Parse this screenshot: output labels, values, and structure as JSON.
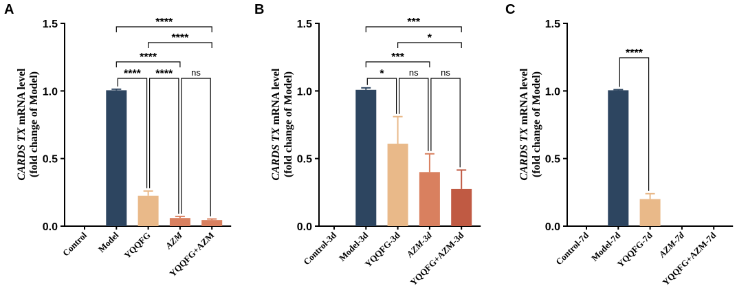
{
  "chart_data": [
    {
      "panel": "A",
      "type": "bar",
      "categories": [
        "Control",
        "Model",
        "YQQFG",
        "AZM",
        "YQQFG+AZM"
      ],
      "category_italic": [
        false,
        false,
        false,
        true,
        false
      ],
      "values": [
        0.0,
        1.005,
        0.225,
        0.06,
        0.045
      ],
      "errors": [
        0.0,
        0.008,
        0.035,
        0.012,
        0.008
      ],
      "colors": [
        "#2d4560",
        "#2d4560",
        "#e9b989",
        "#d9805f",
        "#d9805f"
      ],
      "ylabel_italic": "CARDS TX",
      "ylabel_rest": " mRNA level",
      "ylabel2": "(fold change of Model)",
      "ylim": [
        0,
        1.5
      ],
      "yticks": [
        "0.0",
        "0.5",
        "1.0",
        "1.5"
      ],
      "significance": [
        {
          "from": 1,
          "to": 4,
          "label": "****"
        },
        {
          "from": 2,
          "to": 4,
          "label": "****"
        },
        {
          "from": 1,
          "to": 3,
          "label": "****"
        },
        {
          "from": 1,
          "to": 2,
          "label": "****"
        },
        {
          "from": 2,
          "to": 3,
          "label": "****"
        },
        {
          "from": 3,
          "to": 4,
          "label": "ns"
        }
      ]
    },
    {
      "panel": "B",
      "type": "bar",
      "categories": [
        "Control-3d",
        "Model-3d",
        "YQQFG-3d",
        "AZM-3d",
        "YQQFG+AZM-3d"
      ],
      "category_italic": [
        false,
        false,
        false,
        true,
        false
      ],
      "values": [
        0.0,
        1.008,
        0.61,
        0.4,
        0.275
      ],
      "errors": [
        0.0,
        0.015,
        0.2,
        0.135,
        0.14
      ],
      "colors": [
        "#2d4560",
        "#2d4560",
        "#e9b989",
        "#d9805f",
        "#c05a43"
      ],
      "ylabel_italic": "CARDS TX",
      "ylabel_rest": " mRNA level",
      "ylabel2": "(fold change of Model)",
      "ylim": [
        0,
        1.5
      ],
      "yticks": [
        "0.0",
        "0.5",
        "1.0",
        "1.5"
      ],
      "significance": [
        {
          "from": 1,
          "to": 4,
          "label": "***"
        },
        {
          "from": 2,
          "to": 4,
          "label": "*"
        },
        {
          "from": 1,
          "to": 3,
          "label": "***"
        },
        {
          "from": 1,
          "to": 2,
          "label": "*"
        },
        {
          "from": 2,
          "to": 3,
          "label": "ns"
        },
        {
          "from": 3,
          "to": 4,
          "label": "ns"
        }
      ]
    },
    {
      "panel": "C",
      "type": "bar",
      "categories": [
        "Control-7d",
        "Model-7d",
        "YQQFG-7d",
        "AZM-7d",
        "YQQFG+AZM-7d"
      ],
      "category_italic": [
        false,
        false,
        false,
        true,
        false
      ],
      "values": [
        0.0,
        1.005,
        0.2,
        0.0,
        0.0
      ],
      "errors": [
        0.0,
        0.005,
        0.04,
        0.0,
        0.0
      ],
      "colors": [
        "#2d4560",
        "#2d4560",
        "#e9b989",
        "#d9805f",
        "#d9805f"
      ],
      "ylabel_italic": "CARDS TX",
      "ylabel_rest": " mRNA level",
      "ylabel2": "(fold change of Model)",
      "ylim": [
        0,
        1.5
      ],
      "yticks": [
        "0.0",
        "0.5",
        "1.0",
        "1.5"
      ],
      "significance": [
        {
          "from": 1,
          "to": 2,
          "label": "****"
        }
      ]
    }
  ]
}
